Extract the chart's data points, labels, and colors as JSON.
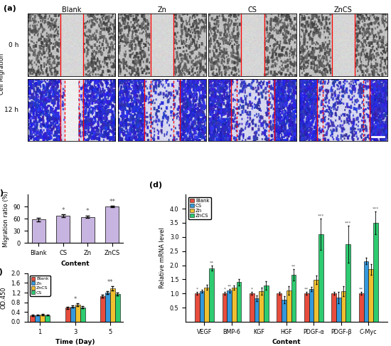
{
  "panel_a_labels": [
    "Blank",
    "Zn",
    "CS",
    "ZnCS"
  ],
  "panel_a_row_labels": [
    "0 h",
    "12 h"
  ],
  "panel_a_ylabel": "Cell Migration",
  "panel_b": {
    "categories": [
      "Blank",
      "CS",
      "Zn",
      "ZnCS"
    ],
    "values": [
      58,
      68,
      65,
      90
    ],
    "errors": [
      4,
      3,
      3,
      2
    ],
    "color": "#c8b4e0",
    "ylabel": "Migration ratio (%)",
    "xlabel": "Content",
    "ylim": [
      0,
      120
    ],
    "yticks": [
      0,
      30,
      60,
      90
    ],
    "significance": [
      "",
      "*",
      "*",
      "**"
    ]
  },
  "panel_c": {
    "groups": [
      1,
      3,
      5
    ],
    "series": {
      "Blank": {
        "values": [
          0.26,
          0.58,
          1.05
        ],
        "errors": [
          0.02,
          0.04,
          0.06
        ],
        "color": "#e74c3c"
      },
      "Zn": {
        "values": [
          0.27,
          0.62,
          1.2
        ],
        "errors": [
          0.02,
          0.04,
          0.07
        ],
        "color": "#3498db"
      },
      "ZnCS": {
        "values": [
          0.29,
          0.7,
          1.38
        ],
        "errors": [
          0.03,
          0.05,
          0.08
        ],
        "color": "#f0c030"
      },
      "CS": {
        "values": [
          0.27,
          0.6,
          1.15
        ],
        "errors": [
          0.02,
          0.04,
          0.06
        ],
        "color": "#2ecc71"
      }
    },
    "series_order": [
      "Blank",
      "Zn",
      "ZnCS",
      "CS"
    ],
    "ylabel": "OD.450",
    "xlabel": "Time (Day)",
    "ylim": [
      0,
      2.0
    ],
    "yticks": [
      0.0,
      0.4,
      0.8,
      1.2,
      1.6,
      2.0
    ],
    "significance": {
      "1": "",
      "3": "*",
      "5": "**"
    }
  },
  "panel_d": {
    "categories": [
      "VEGF",
      "BMP-6",
      "KGF",
      "HGF",
      "PDGF-α",
      "PDGF-β",
      "C-Myc"
    ],
    "series": {
      "Blank": {
        "color": "#e74c3c"
      },
      "CS": {
        "color": "#3498db"
      },
      "Zn": {
        "color": "#f0c030"
      },
      "ZnCS": {
        "color": "#2ecc71"
      }
    },
    "series_order": [
      "Blank",
      "CS",
      "Zn",
      "ZnCS"
    ],
    "values": {
      "VEGF": {
        "Blank": 1.0,
        "CS": 1.08,
        "Zn": 1.22,
        "ZnCS": 1.9
      },
      "BMP-6": {
        "Blank": 1.0,
        "CS": 1.1,
        "Zn": 1.2,
        "ZnCS": 1.4
      },
      "KGF": {
        "Blank": 1.0,
        "CS": 0.82,
        "Zn": 1.08,
        "ZnCS": 1.28
      },
      "HGF": {
        "Blank": 1.0,
        "CS": 0.78,
        "Zn": 1.1,
        "ZnCS": 1.65
      },
      "PDGF-α": {
        "Blank": 1.0,
        "CS": 1.15,
        "Zn": 1.48,
        "ZnCS": 3.1
      },
      "PDGF-β": {
        "Blank": 1.0,
        "CS": 0.85,
        "Zn": 1.08,
        "ZnCS": 2.75
      },
      "C-Myc": {
        "Blank": 1.0,
        "CS": 2.15,
        "Zn": 1.85,
        "ZnCS": 3.5
      }
    },
    "errors": {
      "VEGF": {
        "Blank": 0.05,
        "CS": 0.06,
        "Zn": 0.1,
        "ZnCS": 0.08
      },
      "BMP-6": {
        "Blank": 0.05,
        "CS": 0.06,
        "Zn": 0.08,
        "ZnCS": 0.12
      },
      "KGF": {
        "Blank": 0.05,
        "CS": 0.1,
        "Zn": 0.12,
        "ZnCS": 0.15
      },
      "HGF": {
        "Blank": 0.05,
        "CS": 0.12,
        "Zn": 0.15,
        "ZnCS": 0.2
      },
      "PDGF-α": {
        "Blank": 0.05,
        "CS": 0.08,
        "Zn": 0.15,
        "ZnCS": 0.55
      },
      "PDGF-β": {
        "Blank": 0.05,
        "CS": 0.2,
        "Zn": 0.18,
        "ZnCS": 0.65
      },
      "C-Myc": {
        "Blank": 0.05,
        "CS": 0.12,
        "Zn": 0.2,
        "ZnCS": 0.4
      }
    },
    "significance": {
      "VEGF": {
        "Blank": "*",
        "CS": "",
        "Zn": "",
        "ZnCS": "**"
      },
      "BMP-6": {
        "Blank": "*",
        "CS": "**",
        "Zn": "",
        "ZnCS": ""
      },
      "KGF": {
        "Blank": "*",
        "CS": "",
        "Zn": "",
        "ZnCS": ""
      },
      "HGF": {
        "Blank": "",
        "CS": "",
        "Zn": "",
        "ZnCS": "**"
      },
      "PDGF-α": {
        "Blank": "**",
        "CS": "",
        "Zn": "",
        "ZnCS": "***"
      },
      "PDGF-β": {
        "Blank": "",
        "CS": "",
        "Zn": "",
        "ZnCS": "***"
      },
      "C-Myc": {
        "Blank": "**",
        "CS": "",
        "Zn": "",
        "ZnCS": "***"
      }
    },
    "ylabel": "Relative mRNA level",
    "xlabel": "Content",
    "ylim": [
      0,
      4.0
    ],
    "yticks": [
      0.5,
      1.0,
      1.5,
      2.0,
      2.5,
      3.0,
      3.5,
      4.0
    ]
  }
}
